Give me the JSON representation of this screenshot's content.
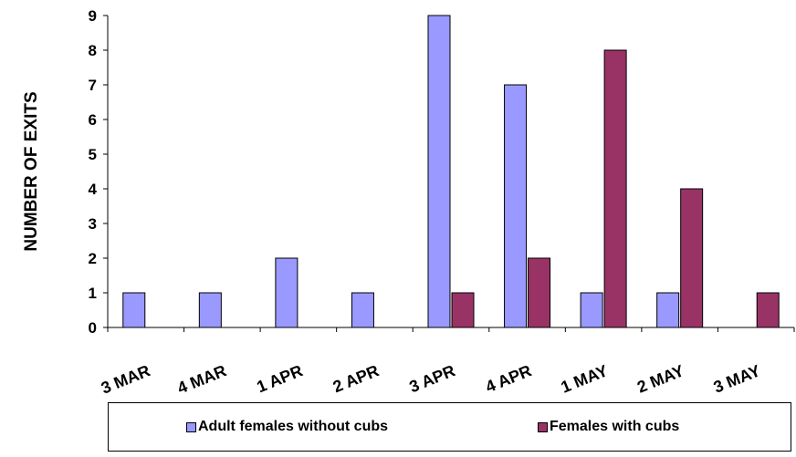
{
  "chart_data": {
    "type": "bar",
    "ylabel": "NUMBER OF EXITS",
    "xlabel": "",
    "title": "",
    "ylim": [
      0,
      9
    ],
    "yticks": [
      "0",
      "1",
      "2",
      "3",
      "4",
      "5",
      "6",
      "7",
      "8",
      "9"
    ],
    "categories": [
      "3 MAR",
      "4 MAR",
      "1 APR",
      "2 APR",
      "3 APR",
      "4 APR",
      "1 MAY",
      "2 MAY",
      "3 MAY"
    ],
    "series": [
      {
        "name": "Adult females without cubs",
        "color": "#9999ff",
        "values": [
          1,
          1,
          2,
          1,
          9,
          7,
          1,
          1,
          0
        ]
      },
      {
        "name": "Females with cubs",
        "color": "#993366",
        "values": [
          0,
          0,
          0,
          0,
          1,
          2,
          8,
          4,
          1
        ]
      }
    ],
    "legend_position": "bottom",
    "grid": false
  }
}
